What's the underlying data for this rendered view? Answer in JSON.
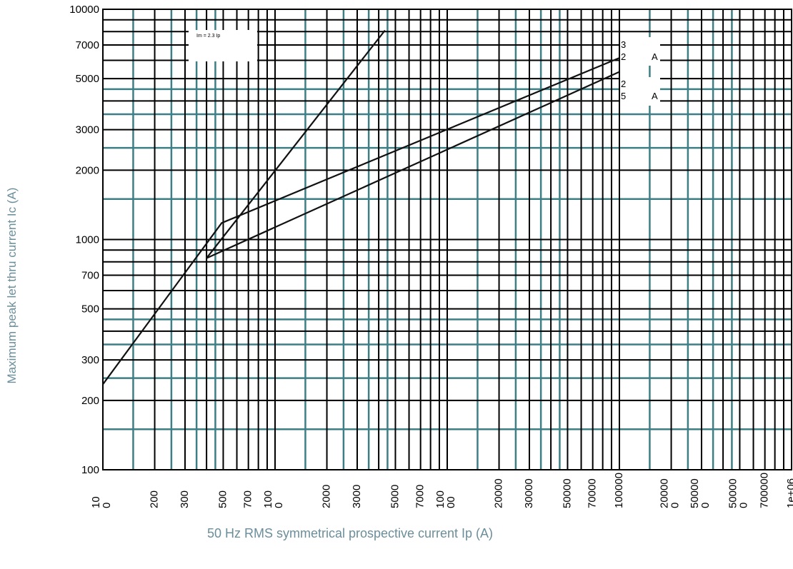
{
  "chart_data": {
    "type": "line",
    "title": "",
    "xlabel": "50 Hz RMS symmetrical prospective current Ip (A)",
    "ylabel": "Maximum peak let thru current Ic (A)",
    "x_scale": "log",
    "y_scale": "log",
    "xlim": [
      100,
      1000000
    ],
    "ylim": [
      100,
      10000
    ],
    "grid": true,
    "x_tick_labels": [
      [
        "10",
        "0"
      ],
      [
        "200"
      ],
      [
        "300"
      ],
      [
        "500"
      ],
      [
        "700"
      ],
      [
        "100",
        "0"
      ],
      [
        "2000"
      ],
      [
        "3000"
      ],
      [
        "5000"
      ],
      [
        "7000"
      ],
      [
        "100",
        "00"
      ],
      [
        "20000"
      ],
      [
        "30000"
      ],
      [
        "50000"
      ],
      [
        "70000"
      ],
      [
        "100000"
      ],
      [
        "20000",
        "0"
      ],
      [
        "50000",
        "0"
      ],
      [
        "50000",
        "0"
      ],
      [
        "700000"
      ],
      [
        "1e+06"
      ]
    ],
    "y_tick_labels": [
      "10000",
      "7000",
      "5000",
      "3000",
      "2000",
      "1000",
      "700",
      "500",
      "300",
      "200",
      "100"
    ],
    "annotation": "Im = 2.3 Ip",
    "series": [
      {
        "label_lines": [
          "3",
          "2",
          "A"
        ],
        "x": [
          100,
          490,
          100000
        ],
        "y": [
          235,
          1180,
          6150
        ]
      },
      {
        "label_lines": [
          "2",
          "5",
          "A"
        ],
        "x": [
          400,
          100000
        ],
        "y": [
          830,
          5350
        ]
      },
      {
        "x": [
          400,
          4350
        ],
        "y": [
          830,
          8100
        ]
      }
    ]
  }
}
